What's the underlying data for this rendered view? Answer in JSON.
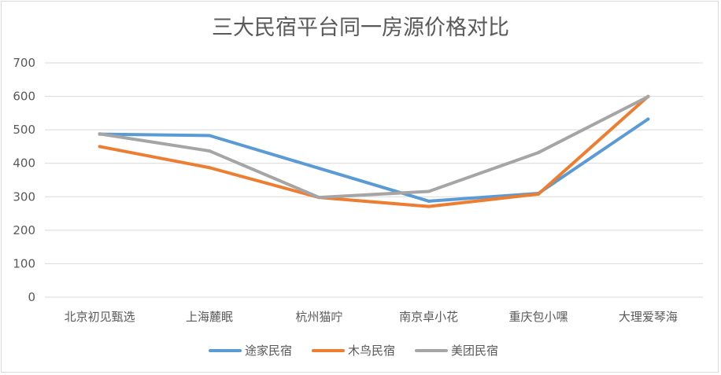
{
  "chart_data": {
    "type": "line",
    "title": "三大民宿平台同一房源价格对比",
    "categories": [
      "北京初见甄选",
      "上海麓眠",
      "杭州猫咛",
      "南京卓小花",
      "重庆包小嘿",
      "大理爱琴海"
    ],
    "series": [
      {
        "name": "途家民宿",
        "color": "#5b9bd5",
        "values": [
          487,
          483,
          385,
          287,
          310,
          532
        ]
      },
      {
        "name": "木鸟民宿",
        "color": "#ed7d31",
        "values": [
          450,
          387,
          298,
          271,
          308,
          600
        ]
      },
      {
        "name": "美团民宿",
        "color": "#a5a5a5",
        "values": [
          488,
          437,
          298,
          316,
          432,
          599
        ]
      }
    ],
    "yticks": [
      "0",
      "100",
      "200",
      "300",
      "400",
      "500",
      "600",
      "700"
    ],
    "ylim": [
      0,
      700
    ],
    "xlabel": "",
    "ylabel": "",
    "grid": true,
    "legend_position": "bottom"
  }
}
